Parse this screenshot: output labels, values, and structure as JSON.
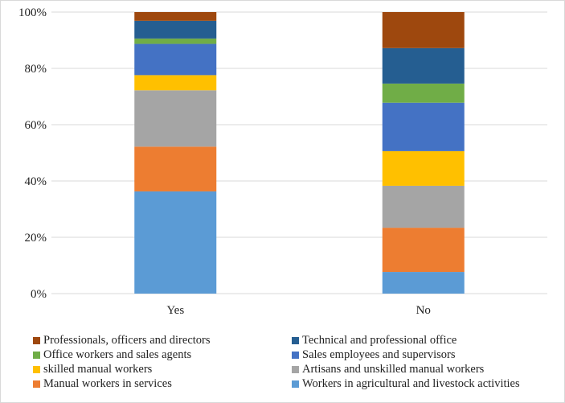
{
  "chart_data": {
    "type": "bar",
    "stacked": true,
    "percent": true,
    "categories": [
      "Yes",
      "No"
    ],
    "ylim": [
      0,
      100
    ],
    "yticks": [
      "0%",
      "20%",
      "40%",
      "60%",
      "80%",
      "100%"
    ],
    "grid": true,
    "legend_position": "bottom",
    "series": [
      {
        "name": "Workers in agricultural and livestock activities",
        "color": "#5B9BD5",
        "values": [
          36.3,
          7.7
        ]
      },
      {
        "name": "Manual workers in services",
        "color": "#ED7D31",
        "values": [
          15.9,
          15.7
        ]
      },
      {
        "name": "Artisans and unskilled manual workers",
        "color": "#A5A5A5",
        "values": [
          20.0,
          14.9
        ]
      },
      {
        "name": "skilled manual workers",
        "color": "#FFC000",
        "values": [
          5.4,
          12.3
        ]
      },
      {
        "name": "Sales employees and supervisors",
        "color": "#4472C4",
        "values": [
          11.1,
          17.2
        ]
      },
      {
        "name": "Office workers and sales agents",
        "color": "#70AD47",
        "values": [
          1.9,
          6.8
        ]
      },
      {
        "name": "Technical and professional office",
        "color": "#255E91",
        "values": [
          6.3,
          12.6
        ]
      },
      {
        "name": "Professionals, officers and directors",
        "color": "#9E480E",
        "values": [
          3.1,
          12.8
        ]
      }
    ],
    "legend_order": [
      7,
      6,
      5,
      4,
      3,
      2,
      1,
      0
    ]
  }
}
